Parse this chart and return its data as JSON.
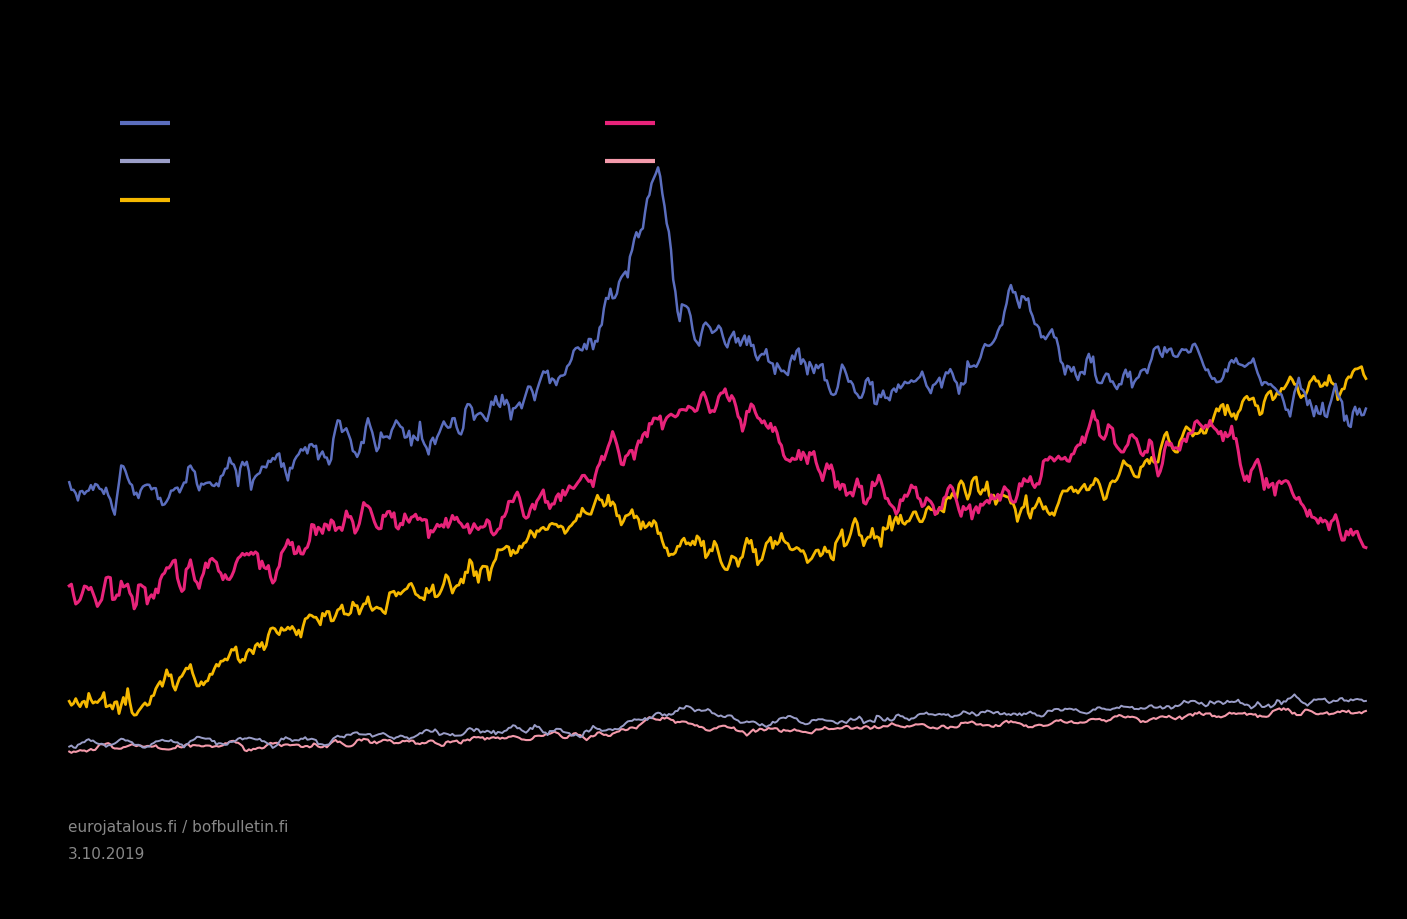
{
  "background_color": "#000000",
  "line_colors": [
    "#5B6EBE",
    "#9B9EC8",
    "#F5B800",
    "#E8237A",
    "#F49AAB"
  ],
  "line_widths": [
    1.8,
    1.4,
    2.0,
    2.2,
    1.5
  ],
  "legend_items_left": [
    {
      "color": "#5B6EBE"
    },
    {
      "color": "#9B9EC8"
    },
    {
      "color": "#F5B800"
    }
  ],
  "legend_items_right": [
    {
      "color": "#E8237A"
    },
    {
      "color": "#F49AAB"
    }
  ],
  "footer_line1": "eurojatalous.fi / bofbulletin.fi",
  "footer_line2": "3.10.2019",
  "footer_color": "#888888",
  "footer_fontsize": 11,
  "n_points": 600
}
